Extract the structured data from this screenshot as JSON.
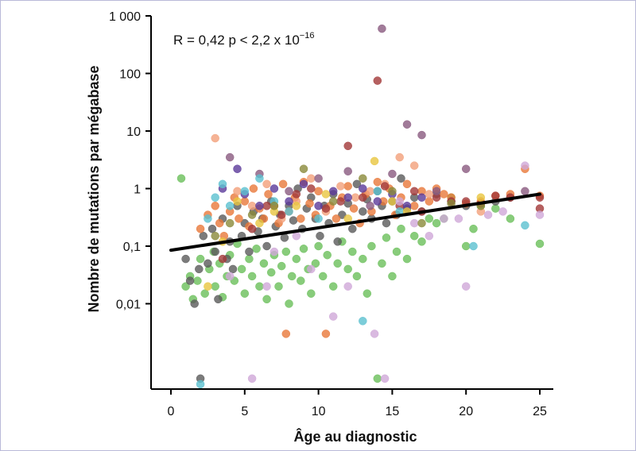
{
  "chart_data": {
    "type": "scatter",
    "xlabel": "Âge au diagnostic",
    "ylabel": "Nombre de mutations par mégabase",
    "annotation": {
      "prefix": "R = 0,42 p < 2,2 x 10",
      "superscript": "−16"
    },
    "x_axis": {
      "range": [
        0,
        25
      ],
      "ticks": [
        0,
        5,
        10,
        15,
        20,
        25
      ],
      "tick_labels": [
        "0",
        "5",
        "10",
        "15",
        "20",
        "25"
      ]
    },
    "y_axis": {
      "scale": "log",
      "range": [
        0.0005,
        1000
      ],
      "ticks": [
        0.01,
        0.1,
        1,
        10,
        100,
        1000
      ],
      "tick_labels": [
        "0,01",
        "0,1",
        "1",
        "10",
        "100",
        "1 000"
      ]
    },
    "grid": false,
    "trend_line": {
      "x": [
        0,
        25
      ],
      "y": [
        0.085,
        0.8
      ],
      "color": "#000000"
    },
    "series": [
      {
        "color": "#6abf5a",
        "points": [
          [
            0.7,
            1.5
          ],
          [
            1.0,
            0.02
          ],
          [
            1.3,
            0.03
          ],
          [
            1.5,
            0.012
          ],
          [
            1.8,
            0.025
          ],
          [
            2.0,
            0.06
          ],
          [
            2.3,
            0.015
          ],
          [
            2.6,
            0.04
          ],
          [
            2.9,
            0.08
          ],
          [
            3.0,
            0.02
          ],
          [
            3.3,
            0.05
          ],
          [
            3.5,
            0.013
          ],
          [
            3.8,
            0.03
          ],
          [
            4.0,
            0.07
          ],
          [
            4.3,
            0.025
          ],
          [
            4.5,
            0.11
          ],
          [
            4.8,
            0.04
          ],
          [
            5.0,
            0.015
          ],
          [
            5.3,
            0.06
          ],
          [
            5.5,
            0.03
          ],
          [
            5.8,
            0.09
          ],
          [
            6.0,
            0.02
          ],
          [
            6.3,
            0.05
          ],
          [
            6.5,
            0.012
          ],
          [
            6.8,
            0.035
          ],
          [
            7.0,
            0.07
          ],
          [
            7.3,
            0.02
          ],
          [
            7.5,
            0.045
          ],
          [
            7.8,
            0.08
          ],
          [
            8.0,
            0.01
          ],
          [
            8.2,
            0.03
          ],
          [
            8.5,
            0.06
          ],
          [
            8.8,
            0.025
          ],
          [
            9.0,
            0.09
          ],
          [
            9.3,
            0.04
          ],
          [
            9.5,
            0.015
          ],
          [
            9.8,
            0.05
          ],
          [
            10.0,
            0.1
          ],
          [
            10.3,
            0.03
          ],
          [
            10.6,
            0.07
          ],
          [
            11.0,
            0.02
          ],
          [
            11.3,
            0.05
          ],
          [
            11.6,
            0.12
          ],
          [
            12.0,
            0.04
          ],
          [
            12.3,
            0.08
          ],
          [
            12.6,
            0.03
          ],
          [
            13.0,
            0.06
          ],
          [
            13.3,
            0.015
          ],
          [
            13.6,
            0.1
          ],
          [
            14.0,
            0.0005
          ],
          [
            14.3,
            0.05
          ],
          [
            14.6,
            0.14
          ],
          [
            15.0,
            0.03
          ],
          [
            15.3,
            0.08
          ],
          [
            15.6,
            0.2
          ],
          [
            16.0,
            0.06
          ],
          [
            16.5,
            0.15
          ],
          [
            17.0,
            0.12
          ],
          [
            17.5,
            0.3
          ],
          [
            18.0,
            0.25
          ],
          [
            18.5,
            0.3
          ],
          [
            19.0,
            0.7
          ],
          [
            20.0,
            0.1
          ],
          [
            20.5,
            0.2
          ],
          [
            21.0,
            0.5
          ],
          [
            22.0,
            0.45
          ],
          [
            23.0,
            0.3
          ],
          [
            25.0,
            0.11
          ]
        ]
      },
      {
        "color": "#5a5a5a",
        "points": [
          [
            1.0,
            0.06
          ],
          [
            1.3,
            0.025
          ],
          [
            1.6,
            0.01
          ],
          [
            1.9,
            0.04
          ],
          [
            2.0,
            0.0005
          ],
          [
            2.2,
            0.15
          ],
          [
            2.5,
            0.05
          ],
          [
            2.8,
            0.2
          ],
          [
            3.0,
            0.08
          ],
          [
            3.2,
            0.012
          ],
          [
            3.5,
            0.3
          ],
          [
            3.8,
            0.06
          ],
          [
            4.0,
            0.12
          ],
          [
            4.2,
            0.04
          ],
          [
            4.5,
            0.5
          ],
          [
            4.8,
            0.15
          ],
          [
            5.0,
            0.25
          ],
          [
            5.3,
            0.08
          ],
          [
            5.6,
            0.4
          ],
          [
            5.9,
            0.18
          ],
          [
            6.2,
            0.3
          ],
          [
            6.5,
            0.1
          ],
          [
            6.8,
            0.6
          ],
          [
            7.1,
            0.22
          ],
          [
            7.4,
            0.35
          ],
          [
            7.7,
            0.14
          ],
          [
            8.0,
            0.5
          ],
          [
            8.3,
            0.28
          ],
          [
            8.6,
            1.0
          ],
          [
            8.9,
            0.2
          ],
          [
            9.2,
            0.45
          ],
          [
            9.5,
            0.7
          ],
          [
            9.8,
            0.3
          ],
          [
            10.1,
            0.15
          ],
          [
            10.4,
            0.5
          ],
          [
            10.7,
            0.25
          ],
          [
            11.0,
            0.8
          ],
          [
            11.3,
            0.12
          ],
          [
            11.6,
            0.35
          ],
          [
            12.0,
            0.55
          ],
          [
            12.3,
            0.2
          ],
          [
            12.6,
            1.2
          ],
          [
            13.0,
            0.4
          ],
          [
            13.3,
            0.65
          ],
          [
            13.6,
            0.3
          ],
          [
            14.0,
            0.9
          ],
          [
            14.3,
            0.5
          ],
          [
            14.6,
            0.25
          ],
          [
            15.0,
            0.6
          ],
          [
            15.3,
            0.35
          ],
          [
            15.6,
            1.5
          ],
          [
            16.0,
            0.45
          ],
          [
            16.5,
            0.7
          ],
          [
            17.0,
            0.4
          ],
          [
            18.0,
            0.8
          ],
          [
            19.0,
            0.6
          ],
          [
            20.0,
            0.5
          ],
          [
            22.0,
            0.6
          ],
          [
            23.0,
            0.7
          ]
        ]
      },
      {
        "color": "#e8783a",
        "points": [
          [
            2.0,
            0.2
          ],
          [
            2.5,
            0.35
          ],
          [
            3.0,
            0.5
          ],
          [
            3.3,
            0.25
          ],
          [
            3.6,
            0.15
          ],
          [
            4.0,
            0.4
          ],
          [
            4.3,
            0.7
          ],
          [
            4.6,
            0.3
          ],
          [
            5.0,
            0.6
          ],
          [
            5.3,
            0.22
          ],
          [
            5.6,
            1.0
          ],
          [
            6.0,
            0.45
          ],
          [
            6.3,
            0.3
          ],
          [
            6.6,
            0.8
          ],
          [
            7.0,
            0.5
          ],
          [
            7.3,
            0.25
          ],
          [
            7.6,
            1.2
          ],
          [
            7.8,
            0.003
          ],
          [
            8.0,
            0.4
          ],
          [
            8.4,
            0.7
          ],
          [
            8.8,
            0.3
          ],
          [
            9.0,
            1.3
          ],
          [
            9.4,
            0.55
          ],
          [
            9.8,
            0.35
          ],
          [
            10.0,
            0.9
          ],
          [
            10.5,
            0.003
          ],
          [
            10.8,
            0.5
          ],
          [
            11.2,
            0.3
          ],
          [
            11.6,
            0.7
          ],
          [
            12.0,
            1.1
          ],
          [
            12.4,
            0.45
          ],
          [
            12.8,
            0.25
          ],
          [
            13.2,
            0.8
          ],
          [
            13.6,
            0.4
          ],
          [
            14.0,
            1.3
          ],
          [
            14.4,
            0.6
          ],
          [
            14.8,
            1.0
          ],
          [
            15.2,
            0.35
          ],
          [
            15.6,
            0.7
          ],
          [
            16.0,
            1.2
          ],
          [
            16.5,
            0.5
          ],
          [
            17.0,
            0.9
          ],
          [
            17.5,
            0.6
          ],
          [
            18.0,
            1.0
          ],
          [
            18.5,
            0.8
          ],
          [
            19.0,
            0.7
          ],
          [
            20.0,
            0.55
          ],
          [
            21.0,
            0.6
          ],
          [
            22.0,
            0.75
          ],
          [
            23.0,
            0.8
          ],
          [
            24.0,
            2.2
          ],
          [
            25.0,
            0.75
          ]
        ]
      },
      {
        "color": "#f2a07a",
        "points": [
          [
            3.0,
            7.5
          ],
          [
            4.5,
            0.9
          ],
          [
            5.5,
            0.5
          ],
          [
            6.5,
            1.2
          ],
          [
            7.5,
            0.3
          ],
          [
            8.5,
            0.6
          ],
          [
            9.5,
            1.5
          ],
          [
            10.5,
            0.4
          ],
          [
            11.5,
            1.1
          ],
          [
            12.5,
            0.7
          ],
          [
            13.5,
            0.9
          ],
          [
            14.5,
            1.2
          ],
          [
            15.5,
            3.5
          ],
          [
            16.5,
            2.5
          ],
          [
            17.5,
            0.8
          ],
          [
            21.0,
            0.4
          ]
        ]
      },
      {
        "color": "#a33838",
        "points": [
          [
            3.5,
            0.06
          ],
          [
            5.5,
            0.2
          ],
          [
            6.5,
            0.5
          ],
          [
            7.5,
            0.35
          ],
          [
            8.5,
            0.8
          ],
          [
            9.5,
            1.0
          ],
          [
            10.5,
            0.45
          ],
          [
            11.5,
            0.6
          ],
          [
            12.0,
            5.5
          ],
          [
            13.0,
            0.7
          ],
          [
            14.0,
            75
          ],
          [
            14.5,
            1.1
          ],
          [
            15.5,
            0.5
          ],
          [
            16.5,
            0.9
          ],
          [
            17.0,
            0.4
          ],
          [
            18.0,
            0.7
          ],
          [
            19.0,
            0.6
          ],
          [
            20.0,
            0.6
          ],
          [
            21.0,
            0.55
          ],
          [
            22.0,
            0.75
          ],
          [
            23.0,
            0.7
          ],
          [
            25.0,
            0.7
          ],
          [
            25.0,
            0.45
          ]
        ]
      },
      {
        "color": "#8a5a80",
        "points": [
          [
            4.0,
            3.5
          ],
          [
            6.0,
            1.8
          ],
          [
            8.0,
            0.9
          ],
          [
            10.0,
            1.5
          ],
          [
            12.0,
            2.0
          ],
          [
            13.5,
            0.5
          ],
          [
            14.3,
            600
          ],
          [
            15.0,
            1.8
          ],
          [
            16.0,
            13
          ],
          [
            17.0,
            8.5
          ],
          [
            18.0,
            0.9
          ],
          [
            20.0,
            2.2
          ],
          [
            24.0,
            0.9
          ]
        ]
      },
      {
        "color": "#5b3a9a",
        "points": [
          [
            3.5,
            1.0
          ],
          [
            4.5,
            2.2
          ],
          [
            5.0,
            0.8
          ],
          [
            6.0,
            0.5
          ],
          [
            7.0,
            1.0
          ],
          [
            8.0,
            0.6
          ],
          [
            9.0,
            1.2
          ],
          [
            10.0,
            0.5
          ],
          [
            11.0,
            0.9
          ],
          [
            12.0,
            0.7
          ],
          [
            13.0,
            1.0
          ],
          [
            14.0,
            0.6
          ],
          [
            15.0,
            0.8
          ],
          [
            16.0,
            0.5
          ],
          [
            17.0,
            0.7
          ]
        ]
      },
      {
        "color": "#5bc0cf",
        "points": [
          [
            2.0,
            0.0004
          ],
          [
            2.5,
            0.3
          ],
          [
            3.0,
            0.7
          ],
          [
            3.5,
            1.2
          ],
          [
            4.0,
            0.5
          ],
          [
            5.0,
            0.9
          ],
          [
            6.0,
            1.5
          ],
          [
            7.0,
            0.6
          ],
          [
            8.0,
            0.4
          ],
          [
            10.0,
            0.3
          ],
          [
            13.0,
            0.005
          ],
          [
            14.0,
            0.9
          ],
          [
            15.5,
            0.4
          ],
          [
            20.5,
            0.1
          ],
          [
            24.0,
            0.23
          ]
        ]
      },
      {
        "color": "#e8c640",
        "points": [
          [
            2.5,
            0.02
          ],
          [
            3.5,
            0.12
          ],
          [
            4.5,
            0.6
          ],
          [
            6.0,
            0.25
          ],
          [
            7.0,
            0.4
          ],
          [
            8.5,
            0.5
          ],
          [
            10.5,
            0.8
          ],
          [
            12.0,
            0.3
          ],
          [
            13.8,
            3.0
          ],
          [
            15.0,
            0.6
          ],
          [
            16.0,
            0.4
          ],
          [
            21.0,
            0.7
          ]
        ]
      },
      {
        "color": "#cfa8d8",
        "points": [
          [
            4.0,
            0.03
          ],
          [
            5.5,
            0.0005
          ],
          [
            6.5,
            0.02
          ],
          [
            7.0,
            0.08
          ],
          [
            8.5,
            0.15
          ],
          [
            9.5,
            0.04
          ],
          [
            11.0,
            0.006
          ],
          [
            12.0,
            0.02
          ],
          [
            13.8,
            0.003
          ],
          [
            14.5,
            0.0005
          ],
          [
            15.5,
            0.6
          ],
          [
            16.5,
            0.25
          ],
          [
            17.5,
            0.15
          ],
          [
            18.5,
            0.3
          ],
          [
            19.5,
            0.3
          ],
          [
            20.0,
            0.02
          ],
          [
            21.5,
            0.35
          ],
          [
            22.5,
            0.4
          ],
          [
            24.0,
            2.5
          ],
          [
            25.0,
            0.35
          ]
        ]
      },
      {
        "color": "#8a8a3a",
        "points": [
          [
            3.0,
            0.15
          ],
          [
            4.0,
            0.25
          ],
          [
            5.5,
            0.35
          ],
          [
            7.0,
            0.5
          ],
          [
            9.0,
            2.2
          ],
          [
            11.0,
            0.6
          ],
          [
            13.0,
            1.5
          ],
          [
            15.0,
            0.9
          ],
          [
            17.0,
            0.25
          ],
          [
            19.0,
            0.55
          ],
          [
            21.0,
            0.5
          ]
        ]
      }
    ]
  }
}
